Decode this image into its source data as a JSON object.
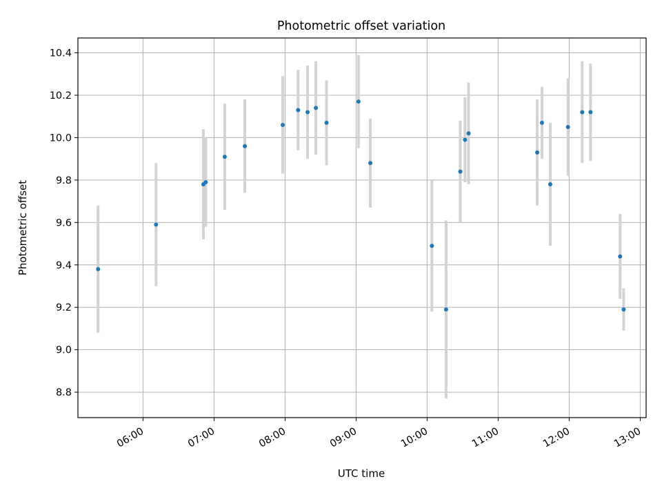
{
  "chart_data": {
    "type": "scatter",
    "title": "Photometric offset variation",
    "xlabel": "UTC time",
    "ylabel": "Photometric offset",
    "x_ticks": [
      "06:00",
      "07:00",
      "08:00",
      "09:00",
      "10:00",
      "11:00",
      "12:00",
      "13:00"
    ],
    "y_ticks": [
      "8.8",
      "9.0",
      "9.2",
      "9.4",
      "9.6",
      "9.8",
      "10.0",
      "10.2",
      "10.4"
    ],
    "xlim": [
      "05:05",
      "13:05"
    ],
    "ylim": [
      8.68,
      10.47
    ],
    "grid": true,
    "marker_color": "#1f77b4",
    "errorbar_color": "#d3d3d3",
    "points": [
      {
        "time": "05:22",
        "y": 9.38,
        "err": 0.3
      },
      {
        "time": "06:11",
        "y": 9.59,
        "err": 0.29
      },
      {
        "time": "06:51",
        "y": 9.78,
        "err": 0.26
      },
      {
        "time": "06:53",
        "y": 9.79,
        "err": 0.21
      },
      {
        "time": "07:09",
        "y": 9.91,
        "err": 0.25
      },
      {
        "time": "07:26",
        "y": 9.96,
        "err": 0.22
      },
      {
        "time": "07:58",
        "y": 10.06,
        "err": 0.23
      },
      {
        "time": "08:11",
        "y": 10.13,
        "err": 0.19
      },
      {
        "time": "08:19",
        "y": 10.12,
        "err": 0.22
      },
      {
        "time": "08:26",
        "y": 10.14,
        "err": 0.22
      },
      {
        "time": "08:35",
        "y": 10.07,
        "err": 0.2
      },
      {
        "time": "09:02",
        "y": 10.17,
        "err": 0.22
      },
      {
        "time": "09:12",
        "y": 9.88,
        "err": 0.21
      },
      {
        "time": "10:04",
        "y": 9.49,
        "err": 0.31
      },
      {
        "time": "10:16",
        "y": 9.19,
        "err": 0.42
      },
      {
        "time": "10:28",
        "y": 9.84,
        "err": 0.24
      },
      {
        "time": "10:32",
        "y": 9.99,
        "err": 0.2
      },
      {
        "time": "10:35",
        "y": 10.02,
        "err": 0.24
      },
      {
        "time": "11:33",
        "y": 9.93,
        "err": 0.25
      },
      {
        "time": "11:37",
        "y": 10.07,
        "err": 0.17
      },
      {
        "time": "11:44",
        "y": 9.78,
        "err": 0.29
      },
      {
        "time": "11:59",
        "y": 10.05,
        "err": 0.23
      },
      {
        "time": "12:11",
        "y": 10.12,
        "err": 0.24
      },
      {
        "time": "12:18",
        "y": 10.12,
        "err": 0.23
      },
      {
        "time": "12:43",
        "y": 9.44,
        "err": 0.2
      },
      {
        "time": "12:46",
        "y": 9.19,
        "err": 0.1
      }
    ]
  }
}
